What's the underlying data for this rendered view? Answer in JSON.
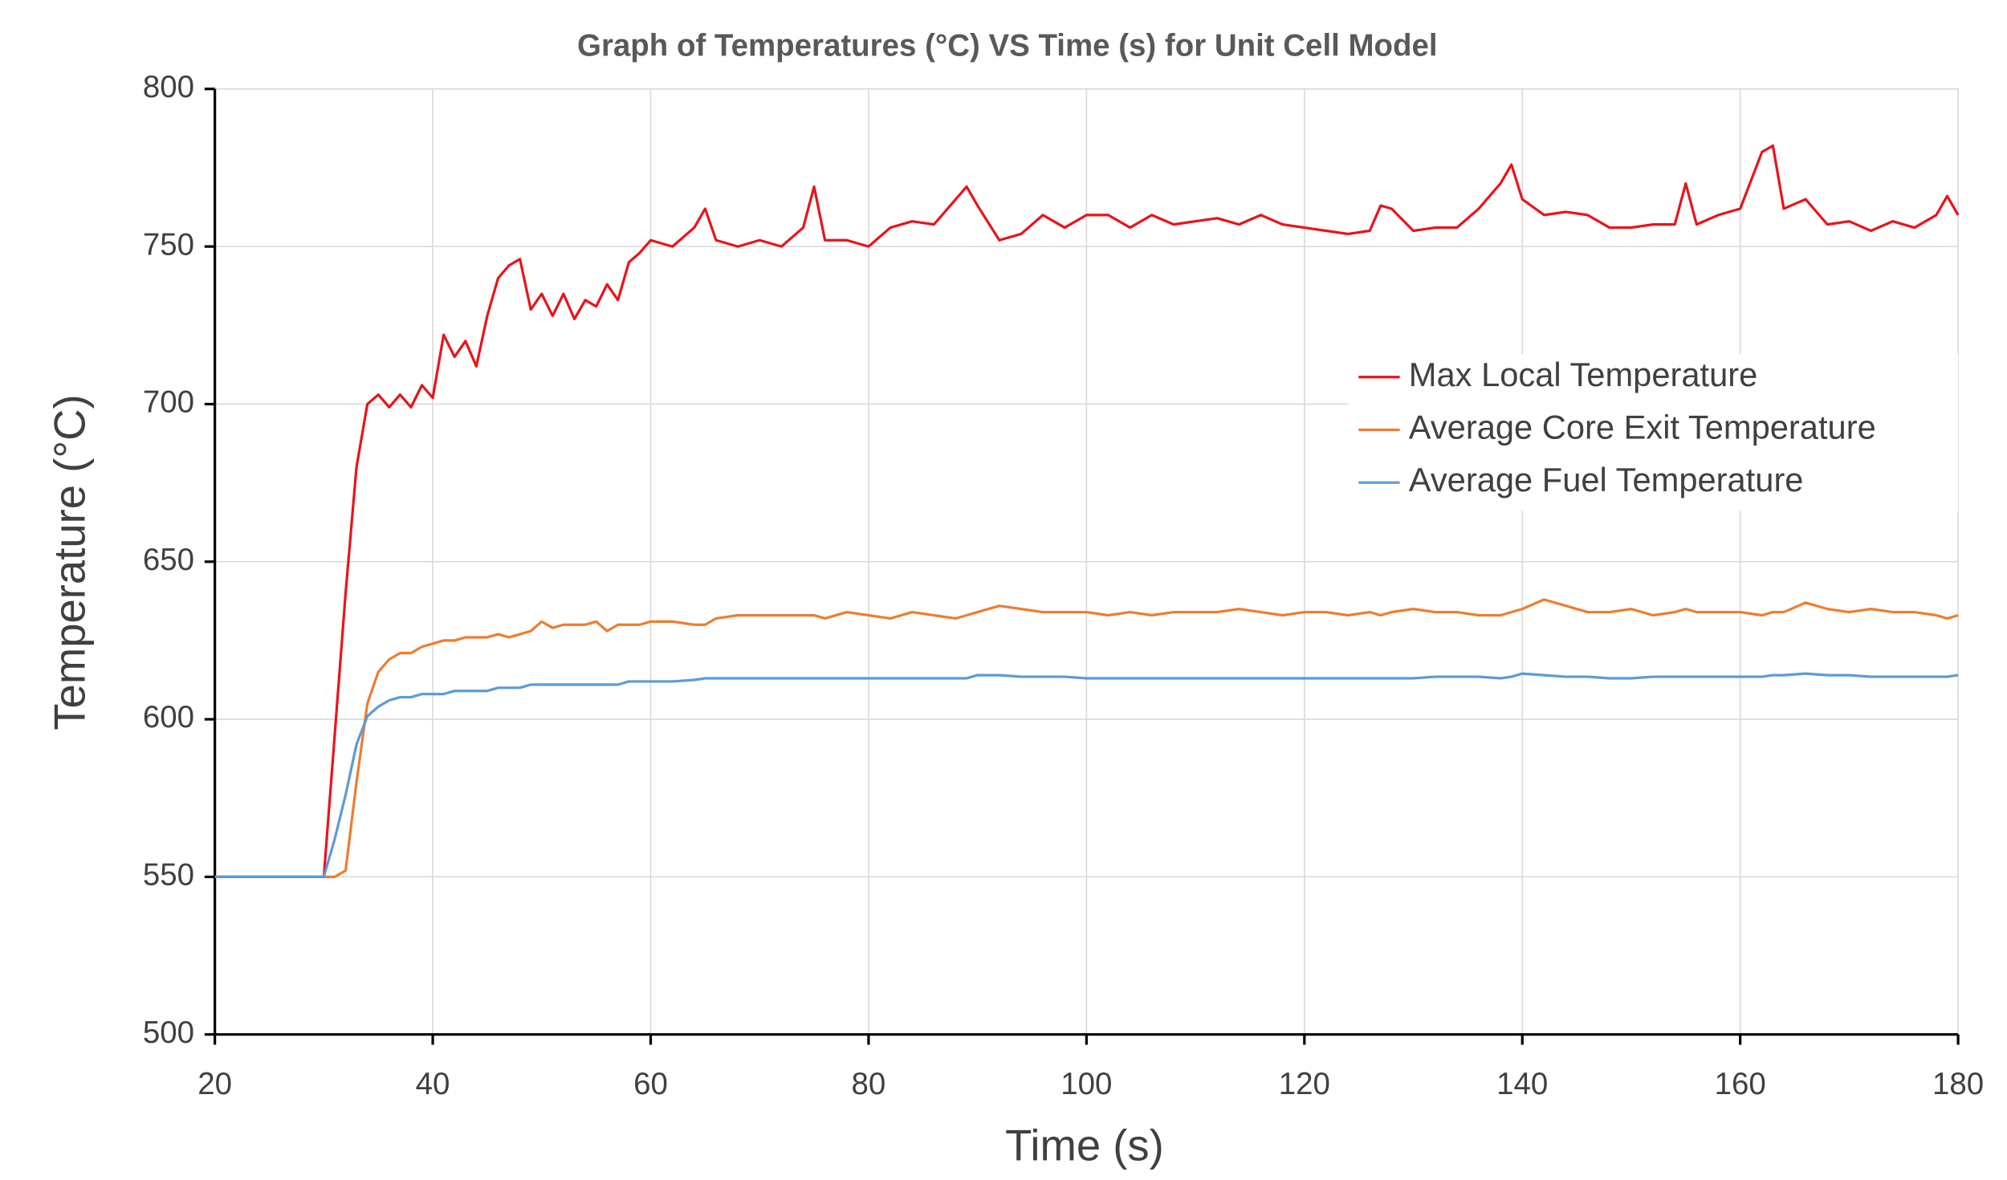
{
  "chart_data": {
    "type": "line",
    "title": "Graph of Temperatures (°C) VS Time (s) for Unit Cell Model",
    "x_label": "Time (s)",
    "y_label": "Temperature (°C)",
    "xlim": [
      20,
      180
    ],
    "xticks": [
      20,
      40,
      60,
      80,
      100,
      120,
      140,
      160,
      180
    ],
    "ylim": [
      500,
      800
    ],
    "yticks": [
      500,
      550,
      600,
      650,
      700,
      750,
      800
    ],
    "grid": true,
    "legend": "right",
    "x": [
      20,
      30,
      31,
      32,
      33,
      34,
      35,
      36,
      37,
      38,
      39,
      40,
      41,
      42,
      43,
      44,
      45,
      46,
      47,
      48,
      49,
      50,
      51,
      52,
      53,
      54,
      55,
      56,
      57,
      58,
      59,
      60,
      62,
      64,
      65,
      66,
      68,
      70,
      72,
      74,
      75,
      76,
      78,
      80,
      82,
      84,
      86,
      88,
      89,
      90,
      92,
      94,
      96,
      98,
      100,
      102,
      104,
      106,
      108,
      110,
      112,
      114,
      116,
      118,
      120,
      122,
      124,
      126,
      127,
      128,
      130,
      132,
      134,
      136,
      138,
      139,
      140,
      142,
      144,
      146,
      148,
      150,
      152,
      154,
      155,
      156,
      158,
      160,
      162,
      163,
      164,
      166,
      168,
      170,
      172,
      174,
      176,
      178,
      179,
      180
    ],
    "series": [
      {
        "name": "Max Local Temperature",
        "color": "#e8141b",
        "values": [
          550,
          550,
          595,
          640,
          680,
          700,
          703,
          699,
          703,
          699,
          706,
          702,
          722,
          715,
          720,
          712,
          728,
          740,
          744,
          746,
          730,
          735,
          728,
          735,
          727,
          733,
          731,
          738,
          733,
          745,
          748,
          752,
          750,
          756,
          762,
          752,
          750,
          752,
          750,
          756,
          769,
          752,
          752,
          750,
          756,
          758,
          757,
          765,
          769,
          763,
          752,
          754,
          760,
          756,
          760,
          760,
          756,
          760,
          757,
          758,
          759,
          757,
          760,
          757,
          756,
          755,
          754,
          755,
          763,
          762,
          755,
          756,
          756,
          762,
          770,
          776,
          765,
          760,
          761,
          760,
          756,
          756,
          757,
          757,
          770,
          757,
          760,
          762,
          780,
          782,
          762,
          765,
          757,
          758,
          755,
          758,
          756,
          760,
          766,
          760
        ]
      },
      {
        "name": "Average Core Exit Temperature",
        "color": "#ed7d31",
        "values": [
          550,
          550,
          550,
          552,
          580,
          605,
          615,
          619,
          621,
          621,
          623,
          624,
          625,
          625,
          626,
          626,
          626,
          627,
          626,
          627,
          628,
          631,
          629,
          630,
          630,
          630,
          631,
          628,
          630,
          630,
          630,
          631,
          631,
          630,
          630,
          632,
          633,
          633,
          633,
          633,
          633,
          632,
          634,
          633,
          632,
          634,
          633,
          632,
          633,
          634,
          636,
          635,
          634,
          634,
          634,
          633,
          634,
          633,
          634,
          634,
          634,
          635,
          634,
          633,
          634,
          634,
          633,
          634,
          633,
          634,
          635,
          634,
          634,
          633,
          633,
          634,
          635,
          638,
          636,
          634,
          634,
          635,
          633,
          634,
          635,
          634,
          634,
          634,
          633,
          634,
          634,
          637,
          635,
          634,
          635,
          634,
          634,
          633,
          632,
          633
        ]
      },
      {
        "name": "Average Fuel Temperature",
        "color": "#5b9bd5",
        "values": [
          550,
          550,
          562,
          576,
          592,
          601,
          604,
          606,
          607,
          607,
          608,
          608,
          608,
          609,
          609,
          609,
          609,
          610,
          610,
          610,
          611,
          611,
          611,
          611,
          611,
          611,
          611,
          611,
          611,
          612,
          612,
          612,
          612,
          612.5,
          613,
          613,
          613,
          613,
          613,
          613,
          613,
          613,
          613,
          613,
          613,
          613,
          613,
          613,
          613,
          614,
          614,
          613.5,
          613.5,
          613.5,
          613,
          613,
          613,
          613,
          613,
          613,
          613,
          613,
          613,
          613,
          613,
          613,
          613,
          613,
          613,
          613,
          613,
          613.5,
          613.5,
          613.5,
          613,
          613.5,
          614.5,
          614,
          613.5,
          613.5,
          613,
          613,
          613.5,
          613.5,
          613.5,
          613.5,
          613.5,
          613.5,
          613.5,
          614,
          614,
          614.5,
          614,
          614,
          613.5,
          613.5,
          613.5,
          613.5,
          613.5,
          614
        ]
      }
    ]
  }
}
